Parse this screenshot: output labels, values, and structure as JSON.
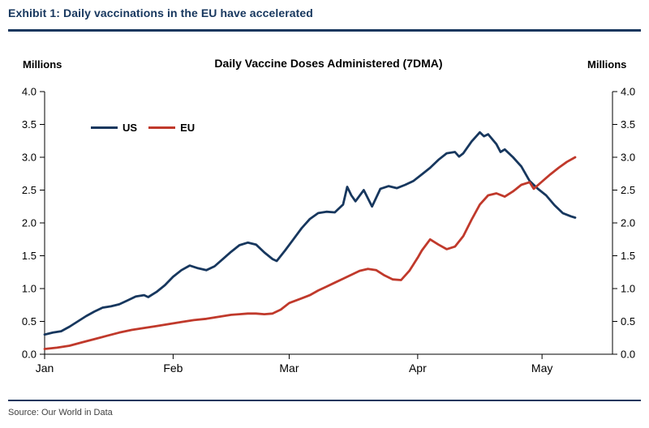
{
  "exhibit": {
    "title": "Exhibit 1: Daily vaccinations in the EU have accelerated"
  },
  "source": {
    "text": "Source: Our World in Data"
  },
  "colors": {
    "navy": "#17375e",
    "red": "#c0392b",
    "axis": "#000000",
    "source_text": "#404040"
  },
  "chart_data": {
    "type": "line",
    "title": "Daily Vaccine Doses Administered (7DMA)",
    "unit_label_left": "Millions",
    "unit_label_right": "Millions",
    "ylim": [
      0.0,
      4.0
    ],
    "ytick_step": 0.5,
    "xlim_days": [
      0,
      137
    ],
    "x_unit": "days since Jan 1 (2021)",
    "grid": false,
    "legend_position": "top-left-inside",
    "xticks": [
      {
        "label": "Jan",
        "day": 0
      },
      {
        "label": "Feb",
        "day": 31
      },
      {
        "label": "Mar",
        "day": 59
      },
      {
        "label": "Apr",
        "day": 90
      },
      {
        "label": "May",
        "day": 120
      }
    ],
    "series": [
      {
        "name": "US",
        "color": "#17375e",
        "points": [
          [
            0,
            0.3
          ],
          [
            2,
            0.33
          ],
          [
            4,
            0.35
          ],
          [
            6,
            0.42
          ],
          [
            8,
            0.5
          ],
          [
            10,
            0.58
          ],
          [
            12,
            0.65
          ],
          [
            14,
            0.71
          ],
          [
            16,
            0.73
          ],
          [
            18,
            0.76
          ],
          [
            20,
            0.82
          ],
          [
            22,
            0.88
          ],
          [
            24,
            0.9
          ],
          [
            25,
            0.87
          ],
          [
            27,
            0.95
          ],
          [
            29,
            1.05
          ],
          [
            31,
            1.18
          ],
          [
            33,
            1.28
          ],
          [
            35,
            1.35
          ],
          [
            37,
            1.31
          ],
          [
            39,
            1.28
          ],
          [
            41,
            1.34
          ],
          [
            43,
            1.45
          ],
          [
            45,
            1.56
          ],
          [
            47,
            1.66
          ],
          [
            49,
            1.7
          ],
          [
            51,
            1.67
          ],
          [
            53,
            1.55
          ],
          [
            55,
            1.45
          ],
          [
            56,
            1.42
          ],
          [
            58,
            1.58
          ],
          [
            60,
            1.75
          ],
          [
            62,
            1.92
          ],
          [
            64,
            2.06
          ],
          [
            66,
            2.15
          ],
          [
            68,
            2.17
          ],
          [
            70,
            2.16
          ],
          [
            72,
            2.28
          ],
          [
            73,
            2.55
          ],
          [
            74,
            2.42
          ],
          [
            75,
            2.33
          ],
          [
            77,
            2.5
          ],
          [
            79,
            2.25
          ],
          [
            81,
            2.52
          ],
          [
            83,
            2.56
          ],
          [
            85,
            2.53
          ],
          [
            87,
            2.58
          ],
          [
            89,
            2.64
          ],
          [
            91,
            2.74
          ],
          [
            93,
            2.84
          ],
          [
            95,
            2.96
          ],
          [
            97,
            3.06
          ],
          [
            99,
            3.08
          ],
          [
            100,
            3.01
          ],
          [
            101,
            3.06
          ],
          [
            103,
            3.24
          ],
          [
            105,
            3.38
          ],
          [
            106,
            3.32
          ],
          [
            107,
            3.35
          ],
          [
            109,
            3.2
          ],
          [
            110,
            3.08
          ],
          [
            111,
            3.12
          ],
          [
            113,
            3.0
          ],
          [
            115,
            2.86
          ],
          [
            117,
            2.64
          ],
          [
            119,
            2.52
          ],
          [
            121,
            2.42
          ],
          [
            123,
            2.27
          ],
          [
            125,
            2.15
          ],
          [
            127,
            2.1
          ],
          [
            128,
            2.08
          ]
        ]
      },
      {
        "name": "EU",
        "color": "#c0392b",
        "points": [
          [
            0,
            0.08
          ],
          [
            3,
            0.1
          ],
          [
            6,
            0.13
          ],
          [
            9,
            0.18
          ],
          [
            12,
            0.23
          ],
          [
            15,
            0.28
          ],
          [
            18,
            0.33
          ],
          [
            21,
            0.37
          ],
          [
            24,
            0.4
          ],
          [
            27,
            0.43
          ],
          [
            30,
            0.46
          ],
          [
            33,
            0.49
          ],
          [
            36,
            0.52
          ],
          [
            39,
            0.54
          ],
          [
            41,
            0.56
          ],
          [
            43,
            0.58
          ],
          [
            45,
            0.6
          ],
          [
            47,
            0.61
          ],
          [
            49,
            0.62
          ],
          [
            51,
            0.62
          ],
          [
            53,
            0.61
          ],
          [
            55,
            0.62
          ],
          [
            57,
            0.68
          ],
          [
            59,
            0.78
          ],
          [
            62,
            0.85
          ],
          [
            64,
            0.9
          ],
          [
            66,
            0.97
          ],
          [
            68,
            1.03
          ],
          [
            70,
            1.09
          ],
          [
            72,
            1.15
          ],
          [
            74,
            1.21
          ],
          [
            76,
            1.27
          ],
          [
            78,
            1.3
          ],
          [
            80,
            1.28
          ],
          [
            82,
            1.2
          ],
          [
            84,
            1.14
          ],
          [
            86,
            1.13
          ],
          [
            88,
            1.27
          ],
          [
            90,
            1.47
          ],
          [
            91,
            1.58
          ],
          [
            93,
            1.75
          ],
          [
            95,
            1.67
          ],
          [
            97,
            1.6
          ],
          [
            99,
            1.64
          ],
          [
            101,
            1.8
          ],
          [
            103,
            2.05
          ],
          [
            105,
            2.28
          ],
          [
            107,
            2.42
          ],
          [
            109,
            2.45
          ],
          [
            111,
            2.4
          ],
          [
            113,
            2.48
          ],
          [
            115,
            2.58
          ],
          [
            117,
            2.62
          ],
          [
            118,
            2.52
          ],
          [
            120,
            2.63
          ],
          [
            122,
            2.74
          ],
          [
            124,
            2.84
          ],
          [
            126,
            2.93
          ],
          [
            128,
            3.0
          ]
        ]
      }
    ]
  }
}
